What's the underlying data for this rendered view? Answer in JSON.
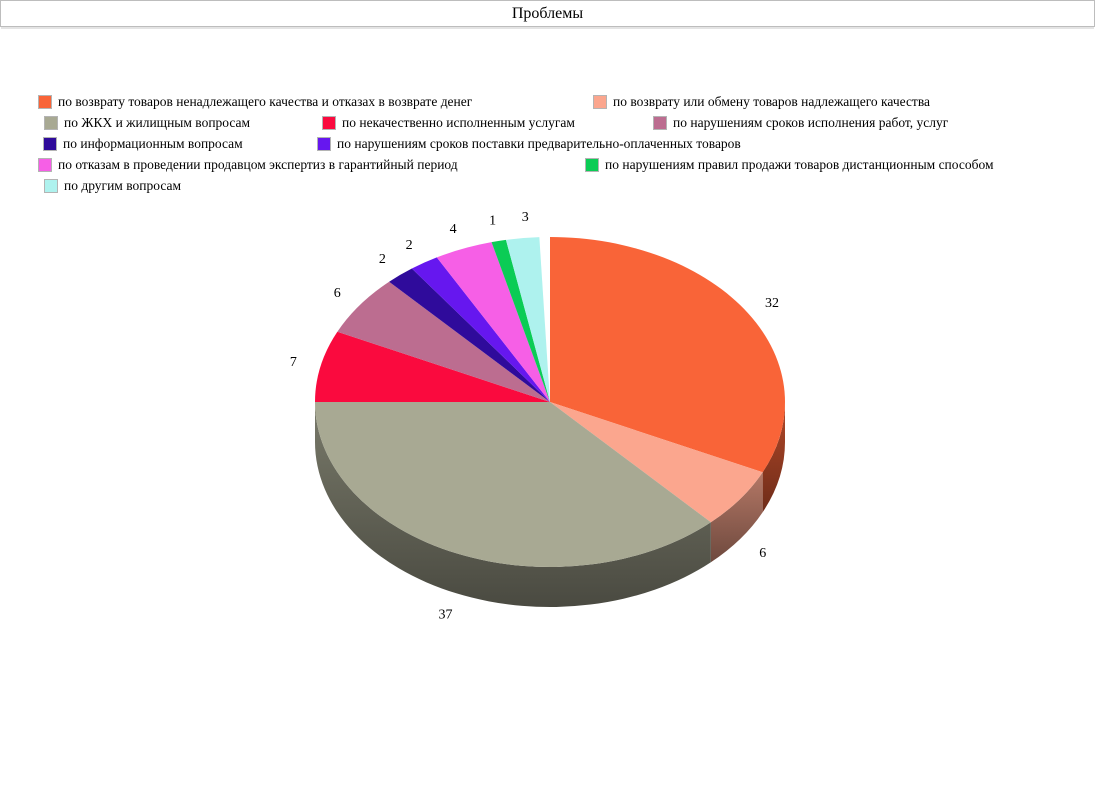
{
  "window": {
    "title": "Проблемы"
  },
  "chart_data": {
    "type": "pie",
    "style": "3d",
    "title": "Проблемы",
    "unit": "percent-of-total",
    "start_angle": "12-o-clock",
    "direction": "clockwise",
    "legend_position": "top-left-wrapped",
    "total": 100,
    "slices": [
      {
        "label": "по возврату товаров ненадлежащего качества и отказах в возврате денег",
        "value": 32,
        "color": "#F96438"
      },
      {
        "label": "по возврату или обмену товаров надлежащего качества",
        "value": 6,
        "color": "#FBA68E"
      },
      {
        "label": "по ЖКХ и жилищным вопросам",
        "value": 37,
        "color": "#A8A993"
      },
      {
        "label": "по некачественно исполненным услугам",
        "value": 7,
        "color": "#FA0A3E"
      },
      {
        "label": "по нарушениям сроков исполнения работ, услуг",
        "value": 6,
        "color": "#BC6D90"
      },
      {
        "label": "по информационным вопросам",
        "value": 2,
        "color": "#2F0B9B"
      },
      {
        "label": "по нарушениям сроков поставки предварительно-оплаченных товаров",
        "value": 2,
        "color": "#6617EF"
      },
      {
        "label": "по отказам в проведении продавцом экспертиз в гарантийный период",
        "value": 4,
        "color": "#F65FE6"
      },
      {
        "label": "по нарушениям правил продажи товаров дистанционным способом",
        "value": 1,
        "color": "#0BCC55"
      },
      {
        "label": "по другим вопросам",
        "value": 3,
        "color": "#AEF2EE"
      }
    ]
  }
}
